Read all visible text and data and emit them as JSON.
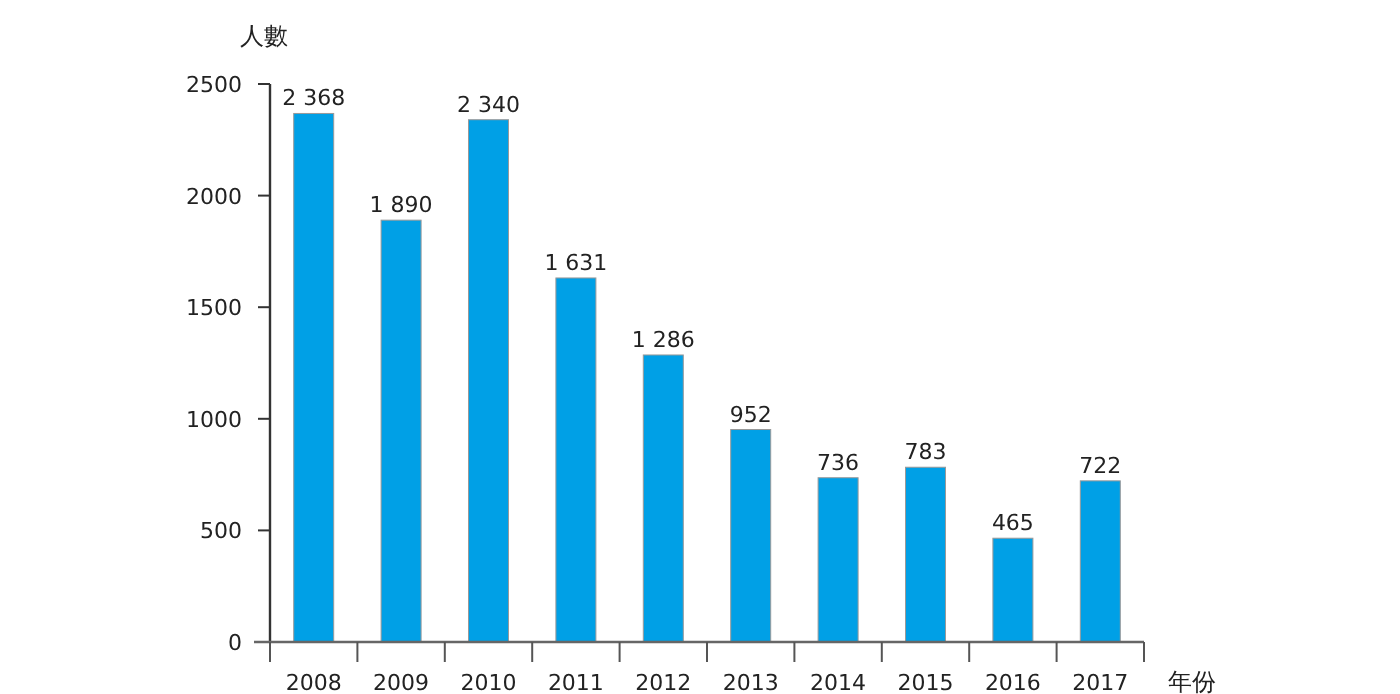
{
  "chart_data": {
    "type": "bar",
    "ylabel": "人數",
    "xlabel": "年份",
    "categories": [
      "2008",
      "2009",
      "2010",
      "2011",
      "2012",
      "2013",
      "2014",
      "2015",
      "2016",
      "2017"
    ],
    "values": [
      2368,
      1890,
      2340,
      1631,
      1286,
      952,
      736,
      783,
      465,
      722
    ],
    "value_labels": [
      "2 368",
      "1 890",
      "2 340",
      "1 631",
      "1 286",
      "952",
      "736",
      "783",
      "465",
      "722"
    ],
    "color": "#00a0e6",
    "ylim": [
      0,
      2500
    ],
    "yticks": [
      0,
      500,
      1000,
      1500,
      2000,
      2500
    ]
  }
}
